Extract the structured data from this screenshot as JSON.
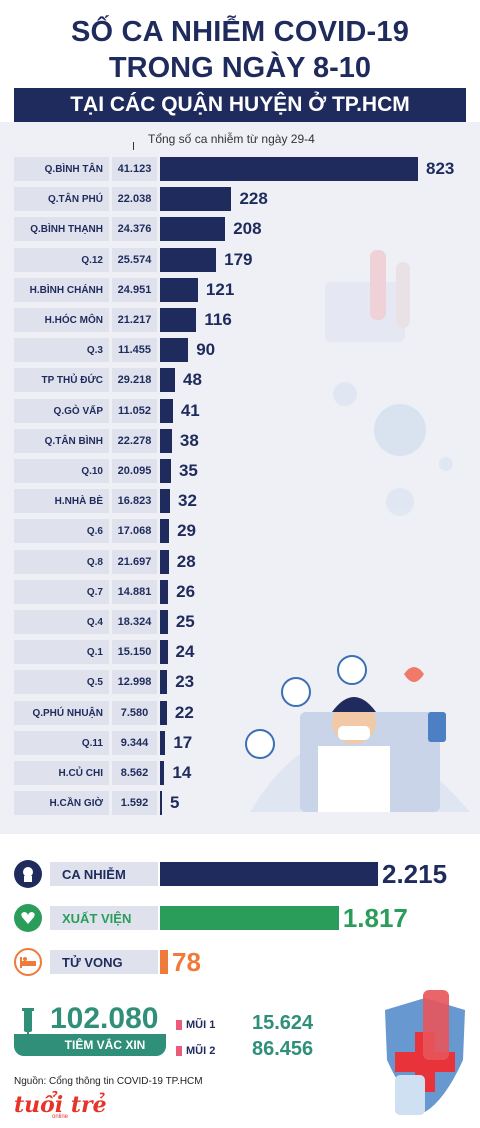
{
  "header": {
    "line1": "SỐ CA NHIỄM COVID-19",
    "line2": "TRONG NGÀY 8-10",
    "subtitle": "TẠI CÁC QUẬN HUYỆN Ở TP.HCM"
  },
  "note": "Tổng số ca nhiễm từ ngày 29-4",
  "chart_data": {
    "type": "bar",
    "orientation": "horizontal",
    "categories": [
      "Q.BÌNH TÂN",
      "Q.TÂN PHÚ",
      "Q.BÌNH THẠNH",
      "Q.12",
      "H.BÌNH CHÁNH",
      "H.HÓC MÔN",
      "Q.3",
      "TP THỦ ĐỨC",
      "Q.GÒ VẤP",
      "Q.TÂN BÌNH",
      "Q.10",
      "H.NHÀ BÈ",
      "Q.6",
      "Q.8",
      "Q.7",
      "Q.4",
      "Q.1",
      "Q.5",
      "Q.PHÚ NHUẬN",
      "Q.11",
      "H.CỦ CHI",
      "H.CẦN GIỜ"
    ],
    "totals": [
      "41.123",
      "22.038",
      "24.376",
      "25.574",
      "24.951",
      "21.217",
      "11.455",
      "29.218",
      "11.052",
      "22.278",
      "20.095",
      "16.823",
      "17.068",
      "21.697",
      "14.881",
      "18.324",
      "15.150",
      "12.998",
      "7.580",
      "9.344",
      "8.562",
      "1.592"
    ],
    "values": [
      823,
      228,
      208,
      179,
      121,
      116,
      90,
      48,
      41,
      38,
      35,
      32,
      29,
      28,
      26,
      25,
      24,
      23,
      22,
      17,
      14,
      5
    ],
    "xlim": [
      0,
      823
    ],
    "bar_color": "#1f2b5c"
  },
  "summary": [
    {
      "label": "CA NHIỄM",
      "value_text": "2.215",
      "value": 2215,
      "color": "#1f2b5c",
      "icon": "person-head-icon"
    },
    {
      "label": "XUẤT VIỆN",
      "value_text": "1.817",
      "value": 1817,
      "color": "#2a9d5a",
      "icon": "heart-icon"
    },
    {
      "label": "TỬ VONG",
      "value_text": "78",
      "value": 78,
      "color": "#f07a3a",
      "icon": "bed-icon"
    }
  ],
  "vaccine": {
    "total": "102.080",
    "label": "TIÊM VẮC XIN",
    "dose1_label": "MŨI 1",
    "dose1_value": "15.624",
    "dose2_label": "MŨI 2",
    "dose2_value": "86.456",
    "color": "#2f8f78"
  },
  "footer": {
    "source": "Nguồn: Cổng thông tin COVID-19 TP.HCM",
    "logo": "tuổi trẻ",
    "logo_sub": "online"
  }
}
